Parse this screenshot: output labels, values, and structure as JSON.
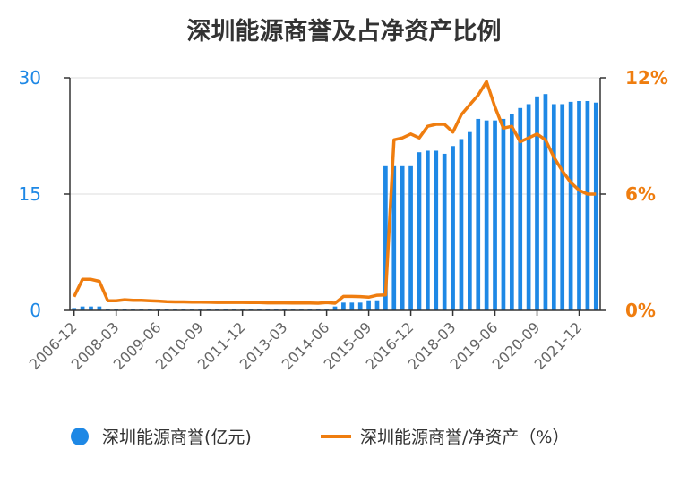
{
  "chart_data": {
    "type": "bar+line",
    "title": "深圳能源商誉及占净资产比例",
    "xlabel": "",
    "ylabel_left": "",
    "ylabel_right": "",
    "y_left": {
      "min": 0,
      "max": 30,
      "ticks": [
        "0",
        "15",
        "30"
      ]
    },
    "y_right": {
      "min": 0,
      "max": 12,
      "ticks": [
        "0%",
        "6%",
        "12%"
      ]
    },
    "colors": {
      "bar": "#1e88e5",
      "line": "#ef7d0f",
      "grid": "#dddddd",
      "axis": "#333333"
    },
    "x_tick_labels": [
      "2006-12",
      "2008-03",
      "2009-06",
      "2010-09",
      "2011-12",
      "2013-03",
      "2014-06",
      "2015-09",
      "2016-12",
      "2018-03",
      "2019-06",
      "2020-09",
      "2021-12"
    ],
    "x_tick_indices": [
      0,
      5,
      10,
      15,
      20,
      25,
      30,
      35,
      40,
      45,
      50,
      55,
      60
    ],
    "series": [
      {
        "name": "深圳能源商誉(亿元)",
        "type": "bar",
        "axis": "left",
        "values": [
          0.3,
          0.5,
          0.5,
          0.5,
          0.2,
          0.2,
          0.2,
          0.2,
          0.2,
          0.2,
          0.2,
          0.2,
          0.2,
          0.2,
          0.2,
          0.2,
          0.2,
          0.2,
          0.2,
          0.2,
          0.2,
          0.2,
          0.2,
          0.2,
          0.2,
          0.2,
          0.2,
          0.2,
          0.2,
          0.2,
          0.2,
          0.5,
          1.0,
          1.0,
          1.0,
          1.3,
          1.3,
          18.6,
          18.6,
          18.6,
          18.6,
          20.4,
          20.6,
          20.6,
          20.2,
          21.2,
          22.1,
          23.0,
          24.7,
          24.5,
          24.5,
          24.7,
          25.3,
          26.1,
          26.6,
          27.6,
          27.9,
          26.6,
          26.6,
          26.9,
          27.0,
          27.0,
          26.8
        ]
      },
      {
        "name": "深圳能源商誉/净资产（%）",
        "type": "line",
        "axis": "right",
        "values": [
          0.7,
          1.6,
          1.6,
          1.5,
          0.5,
          0.5,
          0.55,
          0.52,
          0.52,
          0.5,
          0.48,
          0.45,
          0.44,
          0.44,
          0.43,
          0.43,
          0.42,
          0.41,
          0.41,
          0.41,
          0.41,
          0.4,
          0.4,
          0.39,
          0.39,
          0.39,
          0.38,
          0.38,
          0.38,
          0.37,
          0.4,
          0.37,
          0.72,
          0.72,
          0.71,
          0.68,
          0.78,
          0.8,
          8.8,
          8.9,
          9.1,
          8.9,
          9.5,
          9.6,
          9.6,
          9.2,
          10.1,
          10.6,
          11.1,
          11.8,
          10.5,
          9.4,
          9.5,
          8.7,
          8.9,
          9.1,
          8.8,
          7.9,
          7.2,
          6.6,
          6.2,
          6.0,
          6.0
        ]
      }
    ],
    "legend": {
      "position": "bottom"
    }
  }
}
